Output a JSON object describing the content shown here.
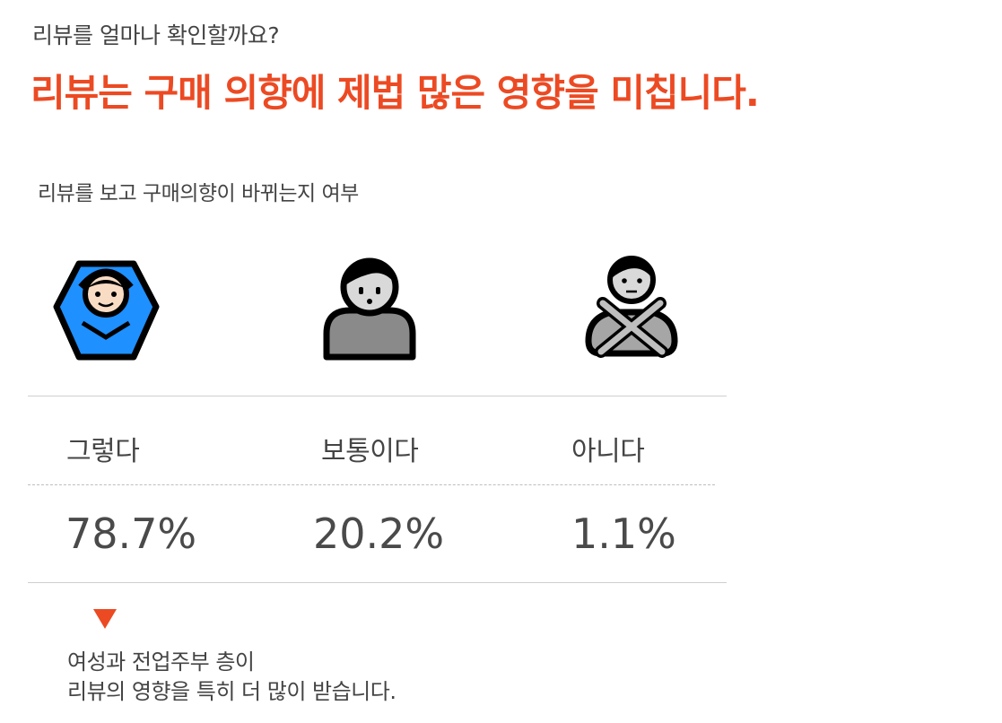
{
  "header": {
    "subtitle": "리뷰를 얼마나 확인할까요?",
    "title": "리뷰는 구매 의향에 제법 많은 영향을 미칩니다."
  },
  "chart_data": {
    "type": "table",
    "title": "리뷰를 보고 구매의향이 바뀌는지 여부",
    "categories": [
      "그렇다",
      "보통이다",
      "아니다"
    ],
    "values": [
      78.7,
      20.2,
      1.1
    ],
    "value_labels": [
      "78.7%",
      "20.2%",
      "1.1%"
    ],
    "icons": [
      "person-gesturing-ok-icon",
      "neutral-person-icon",
      "person-gesturing-no-icon"
    ],
    "unit": "%"
  },
  "footnote": {
    "line1": "여성과 전업주부 층이",
    "line2": "리뷰의 영향을 특히 더 많이 받습니다."
  },
  "colors": {
    "accent": "#ec4a23",
    "text": "#444444",
    "rule": "#cfcfcf",
    "ok_shirt": "#1e90ff",
    "neutral_gray": "#8a8a8a"
  }
}
